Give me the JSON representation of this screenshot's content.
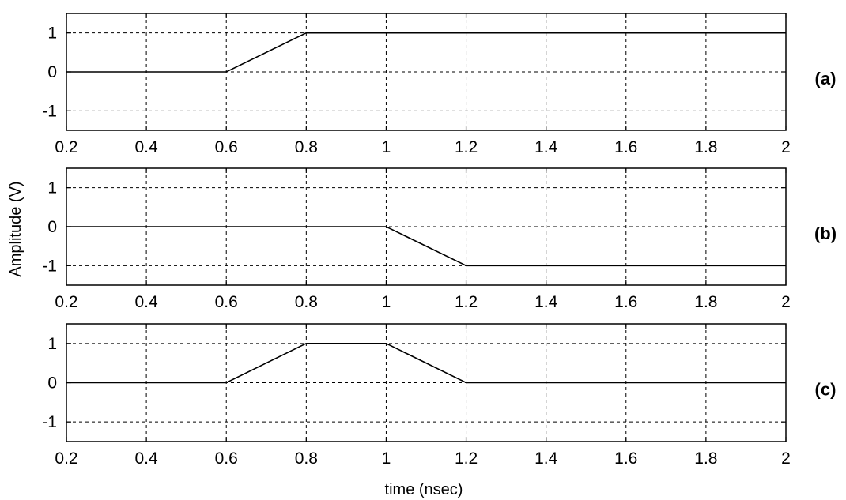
{
  "chart_data": {
    "type": "line",
    "ylabel": "Amplitude (V)",
    "xlabel": "time (nsec)",
    "xlim": [
      0.2,
      2
    ],
    "ylim": [
      -1.5,
      1.5
    ],
    "grid": true,
    "x_ticks": [
      "0.2",
      "0.4",
      "0.6",
      "0.8",
      "1",
      "1.2",
      "1.4",
      "1.6",
      "1.8",
      "2"
    ],
    "y_ticks": [
      "1",
      "0",
      "-1"
    ],
    "panels": [
      {
        "label": "(a)",
        "x": [
          0.2,
          0.6,
          0.8,
          2
        ],
        "y": [
          0,
          0,
          1,
          1
        ]
      },
      {
        "label": "(b)",
        "x": [
          0.2,
          1.0,
          1.2,
          2
        ],
        "y": [
          0,
          0,
          -1,
          -1
        ]
      },
      {
        "label": "(c)",
        "x": [
          0.2,
          0.6,
          0.8,
          1.0,
          1.2,
          2
        ],
        "y": [
          0,
          0,
          1,
          1,
          0,
          0
        ]
      }
    ]
  }
}
